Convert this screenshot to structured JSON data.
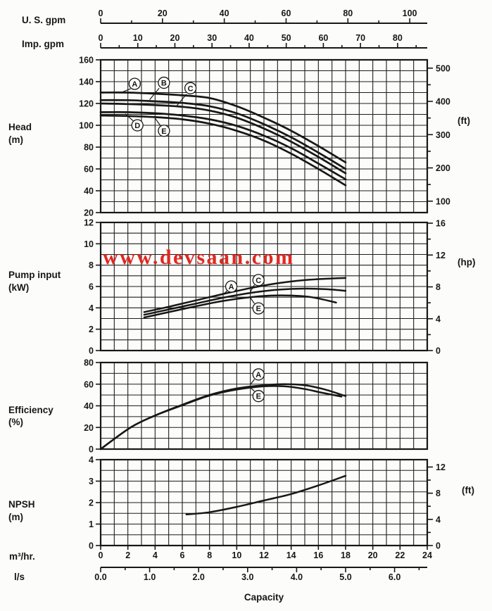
{
  "watermark": {
    "text": "www.devsaan.com",
    "color": "#e02820"
  },
  "labels": {
    "us_gpm": "U. S. gpm",
    "imp_gpm": "Imp. gpm",
    "head": "Head",
    "head_unit": "(m)",
    "pump_input": "Pump input",
    "pump_unit": "(kW)",
    "efficiency": "Efficiency",
    "eff_unit": "(%)",
    "npsh": "NPSH",
    "npsh_unit": "(m)",
    "m3hr": "m³/hr.",
    "ls": "l/s",
    "capacity": "Capacity",
    "ft_head": "(ft)",
    "hp": "(hp)",
    "ft_npsh": "(ft)"
  },
  "chart_data": {
    "type": "line",
    "title": "Pump performance curves",
    "xlabel": "Capacity",
    "x_axis": {
      "unit": "m³/hr",
      "range": [
        0,
        24
      ],
      "grid_step": 1,
      "labels": [
        0,
        2,
        4,
        6,
        8,
        10,
        12,
        14,
        16,
        18,
        20,
        22,
        24
      ]
    },
    "capacity_scales": [
      {
        "id": "us_gpm",
        "name": "U. S. gpm",
        "m3hr_per_unit": 0.22712,
        "tick_step": 10,
        "labels": [
          0,
          20,
          40,
          60,
          80,
          100
        ],
        "decimals": 0
      },
      {
        "id": "imp_gpm",
        "name": "Imp. gpm",
        "m3hr_per_unit": 0.27277,
        "tick_step": 5,
        "labels": [
          0,
          10,
          20,
          30,
          40,
          50,
          60,
          70,
          80
        ],
        "decimals": 0
      },
      {
        "id": "l_s",
        "name": "l/s",
        "m3hr_per_unit": 3.6,
        "tick_step": 0.5,
        "labels": [
          0,
          1,
          2,
          3,
          4,
          5,
          6
        ],
        "decimals": 1
      }
    ],
    "panels": [
      {
        "id": "head",
        "ylabel": "Head (m)",
        "y_range": [
          20,
          160
        ],
        "grid_step": 10,
        "y_ticks": [
          160,
          140,
          120,
          100,
          80,
          60,
          40,
          20
        ],
        "right_axis": {
          "unit": "ft",
          "to_primary": 0.3048,
          "tick_step": 50,
          "labels": [
            500,
            400,
            300,
            200,
            100
          ]
        },
        "series": [
          {
            "name": "A",
            "points": [
              [
                0,
                130
              ],
              [
                2,
                130
              ],
              [
                4,
                129
              ],
              [
                6,
                127.5
              ],
              [
                8,
                125
              ],
              [
                10,
                117.5
              ],
              [
                12,
                107
              ],
              [
                14,
                95
              ],
              [
                16,
                81
              ],
              [
                18,
                66
              ]
            ]
          },
          {
            "name": "B",
            "points": [
              [
                0,
                123
              ],
              [
                2,
                123
              ],
              [
                4,
                122
              ],
              [
                6,
                120.5
              ],
              [
                8,
                117.5
              ],
              [
                10,
                111
              ],
              [
                12,
                101
              ],
              [
                14,
                89
              ],
              [
                16,
                75
              ],
              [
                18,
                60
              ]
            ]
          },
          {
            "name": "C",
            "points": [
              [
                0,
                120
              ],
              [
                2,
                119.5
              ],
              [
                4,
                118.5
              ],
              [
                6,
                117
              ],
              [
                8,
                113.5
              ],
              [
                10,
                107
              ],
              [
                12,
                97
              ],
              [
                14,
                85
              ],
              [
                16,
                71
              ],
              [
                18,
                56
              ]
            ]
          },
          {
            "name": "D",
            "points": [
              [
                0,
                112
              ],
              [
                2,
                112
              ],
              [
                4,
                111
              ],
              [
                6,
                109
              ],
              [
                8,
                105.5
              ],
              [
                10,
                99.5
              ],
              [
                12,
                90.5
              ],
              [
                14,
                79
              ],
              [
                16,
                65
              ],
              [
                18,
                50.5
              ]
            ]
          },
          {
            "name": "E",
            "points": [
              [
                0,
                109
              ],
              [
                2,
                108.5
              ],
              [
                4,
                107.5
              ],
              [
                6,
                105.5
              ],
              [
                8,
                101.5
              ],
              [
                10,
                95
              ],
              [
                12,
                86
              ],
              [
                14,
                74
              ],
              [
                16,
                60
              ],
              [
                18,
                45
              ]
            ]
          }
        ],
        "annotations": [
          {
            "label": "A",
            "at": [
              2.5,
              138
            ],
            "leader": [
              [
                2.2,
                133.5
              ],
              [
                1.5,
                130
              ]
            ]
          },
          {
            "label": "B",
            "at": [
              4.65,
              139
            ],
            "leader": [
              [
                4.3,
                134
              ],
              [
                3.6,
                123.5
              ]
            ]
          },
          {
            "label": "C",
            "at": [
              6.6,
              134
            ],
            "leader": [
              [
                6.3,
                128.5
              ],
              [
                5.6,
                118
              ]
            ]
          },
          {
            "label": "D",
            "at": [
              2.7,
              100
            ],
            "leader": [
              [
                2.4,
                104
              ],
              [
                1.8,
                110.5
              ]
            ]
          },
          {
            "label": "E",
            "at": [
              4.65,
              95
            ],
            "leader": [
              [
                4.4,
                99.5
              ],
              [
                4.0,
                106.5
              ]
            ]
          }
        ]
      },
      {
        "id": "pump_input",
        "ylabel": "Pump input (kW)",
        "y_range": [
          0,
          12
        ],
        "grid_step": 1,
        "y_ticks": [
          12,
          10,
          8,
          6,
          4,
          2,
          0
        ],
        "right_axis": {
          "unit": "hp",
          "to_primary": 0.7457,
          "tick_step": 2,
          "labels": [
            16,
            12,
            8,
            4,
            0
          ]
        },
        "series": [
          {
            "name": "A",
            "points": [
              [
                3.2,
                3.6
              ],
              [
                5,
                4.1
              ],
              [
                7,
                4.7
              ],
              [
                9,
                5.3
              ],
              [
                11,
                5.85
              ],
              [
                13,
                6.3
              ],
              [
                15,
                6.6
              ],
              [
                17,
                6.75
              ],
              [
                18,
                6.8
              ]
            ]
          },
          {
            "name": "C",
            "points": [
              [
                3.2,
                3.35
              ],
              [
                5,
                3.85
              ],
              [
                7,
                4.4
              ],
              [
                9,
                4.95
              ],
              [
                11,
                5.4
              ],
              [
                13,
                5.7
              ],
              [
                15,
                5.8
              ],
              [
                16.5,
                5.75
              ],
              [
                18,
                5.6
              ]
            ]
          },
          {
            "name": "E",
            "points": [
              [
                3.2,
                3.1
              ],
              [
                5,
                3.6
              ],
              [
                7,
                4.15
              ],
              [
                9,
                4.65
              ],
              [
                11,
                5.0
              ],
              [
                12.5,
                5.15
              ],
              [
                14,
                5.15
              ],
              [
                15.5,
                5.0
              ],
              [
                17.3,
                4.5
              ]
            ]
          }
        ],
        "annotations": [
          {
            "label": "A",
            "at": [
              9.6,
              6.0
            ],
            "leader": [
              [
                9.3,
                5.6
              ],
              [
                9.0,
                5.25
              ]
            ]
          },
          {
            "label": "C",
            "at": [
              11.6,
              6.6
            ],
            "leader": [
              [
                11.3,
                6.15
              ],
              [
                11.0,
                5.5
              ]
            ]
          },
          {
            "label": "E",
            "at": [
              11.6,
              3.95
            ],
            "leader": [
              [
                11.3,
                4.4
              ],
              [
                11.0,
                4.95
              ]
            ]
          }
        ]
      },
      {
        "id": "efficiency",
        "ylabel": "Efficiency (%)",
        "y_range": [
          0,
          80
        ],
        "grid_step": 10,
        "y_ticks": [
          80,
          60,
          40,
          20,
          0
        ],
        "right_axis": null,
        "series": [
          {
            "name": "A",
            "points": [
              [
                0,
                0
              ],
              [
                2.2,
                20
              ],
              [
                4,
                31
              ],
              [
                6,
                41
              ],
              [
                8,
                50
              ],
              [
                10,
                56
              ],
              [
                12,
                59
              ],
              [
                13.5,
                60
              ],
              [
                15,
                59
              ],
              [
                16.5,
                55
              ],
              [
                18,
                49
              ]
            ]
          },
          {
            "name": "E",
            "points": [
              [
                0,
                0
              ],
              [
                2.2,
                20
              ],
              [
                4,
                31
              ],
              [
                6,
                40.5
              ],
              [
                8,
                49.5
              ],
              [
                10,
                55
              ],
              [
                12,
                58
              ],
              [
                13.5,
                58
              ],
              [
                15,
                55.5
              ],
              [
                16.3,
                52
              ],
              [
                17.7,
                48.5
              ]
            ]
          }
        ],
        "annotations": [
          {
            "label": "A",
            "at": [
              11.6,
              69
            ],
            "leader": [
              [
                11.3,
                64.5
              ],
              [
                11.0,
                59.5
              ]
            ]
          },
          {
            "label": "E",
            "at": [
              11.6,
              49
            ],
            "leader": [
              [
                11.3,
                53.5
              ],
              [
                11.0,
                56.8
              ]
            ]
          }
        ]
      },
      {
        "id": "npsh",
        "ylabel": "NPSH (m)",
        "y_range": [
          0,
          4
        ],
        "grid_step": 0.5,
        "y_ticks": [
          4,
          3,
          2,
          1,
          0
        ],
        "right_axis": {
          "unit": "ft",
          "to_primary": 0.3048,
          "tick_step": 2,
          "labels": [
            12,
            8,
            4,
            0
          ]
        },
        "series": [
          {
            "name": "NPSH",
            "points": [
              [
                6.3,
                1.45
              ],
              [
                8,
                1.55
              ],
              [
                10,
                1.8
              ],
              [
                12,
                2.1
              ],
              [
                14,
                2.4
              ],
              [
                16,
                2.8
              ],
              [
                18,
                3.25
              ]
            ]
          }
        ],
        "annotations": []
      }
    ]
  }
}
